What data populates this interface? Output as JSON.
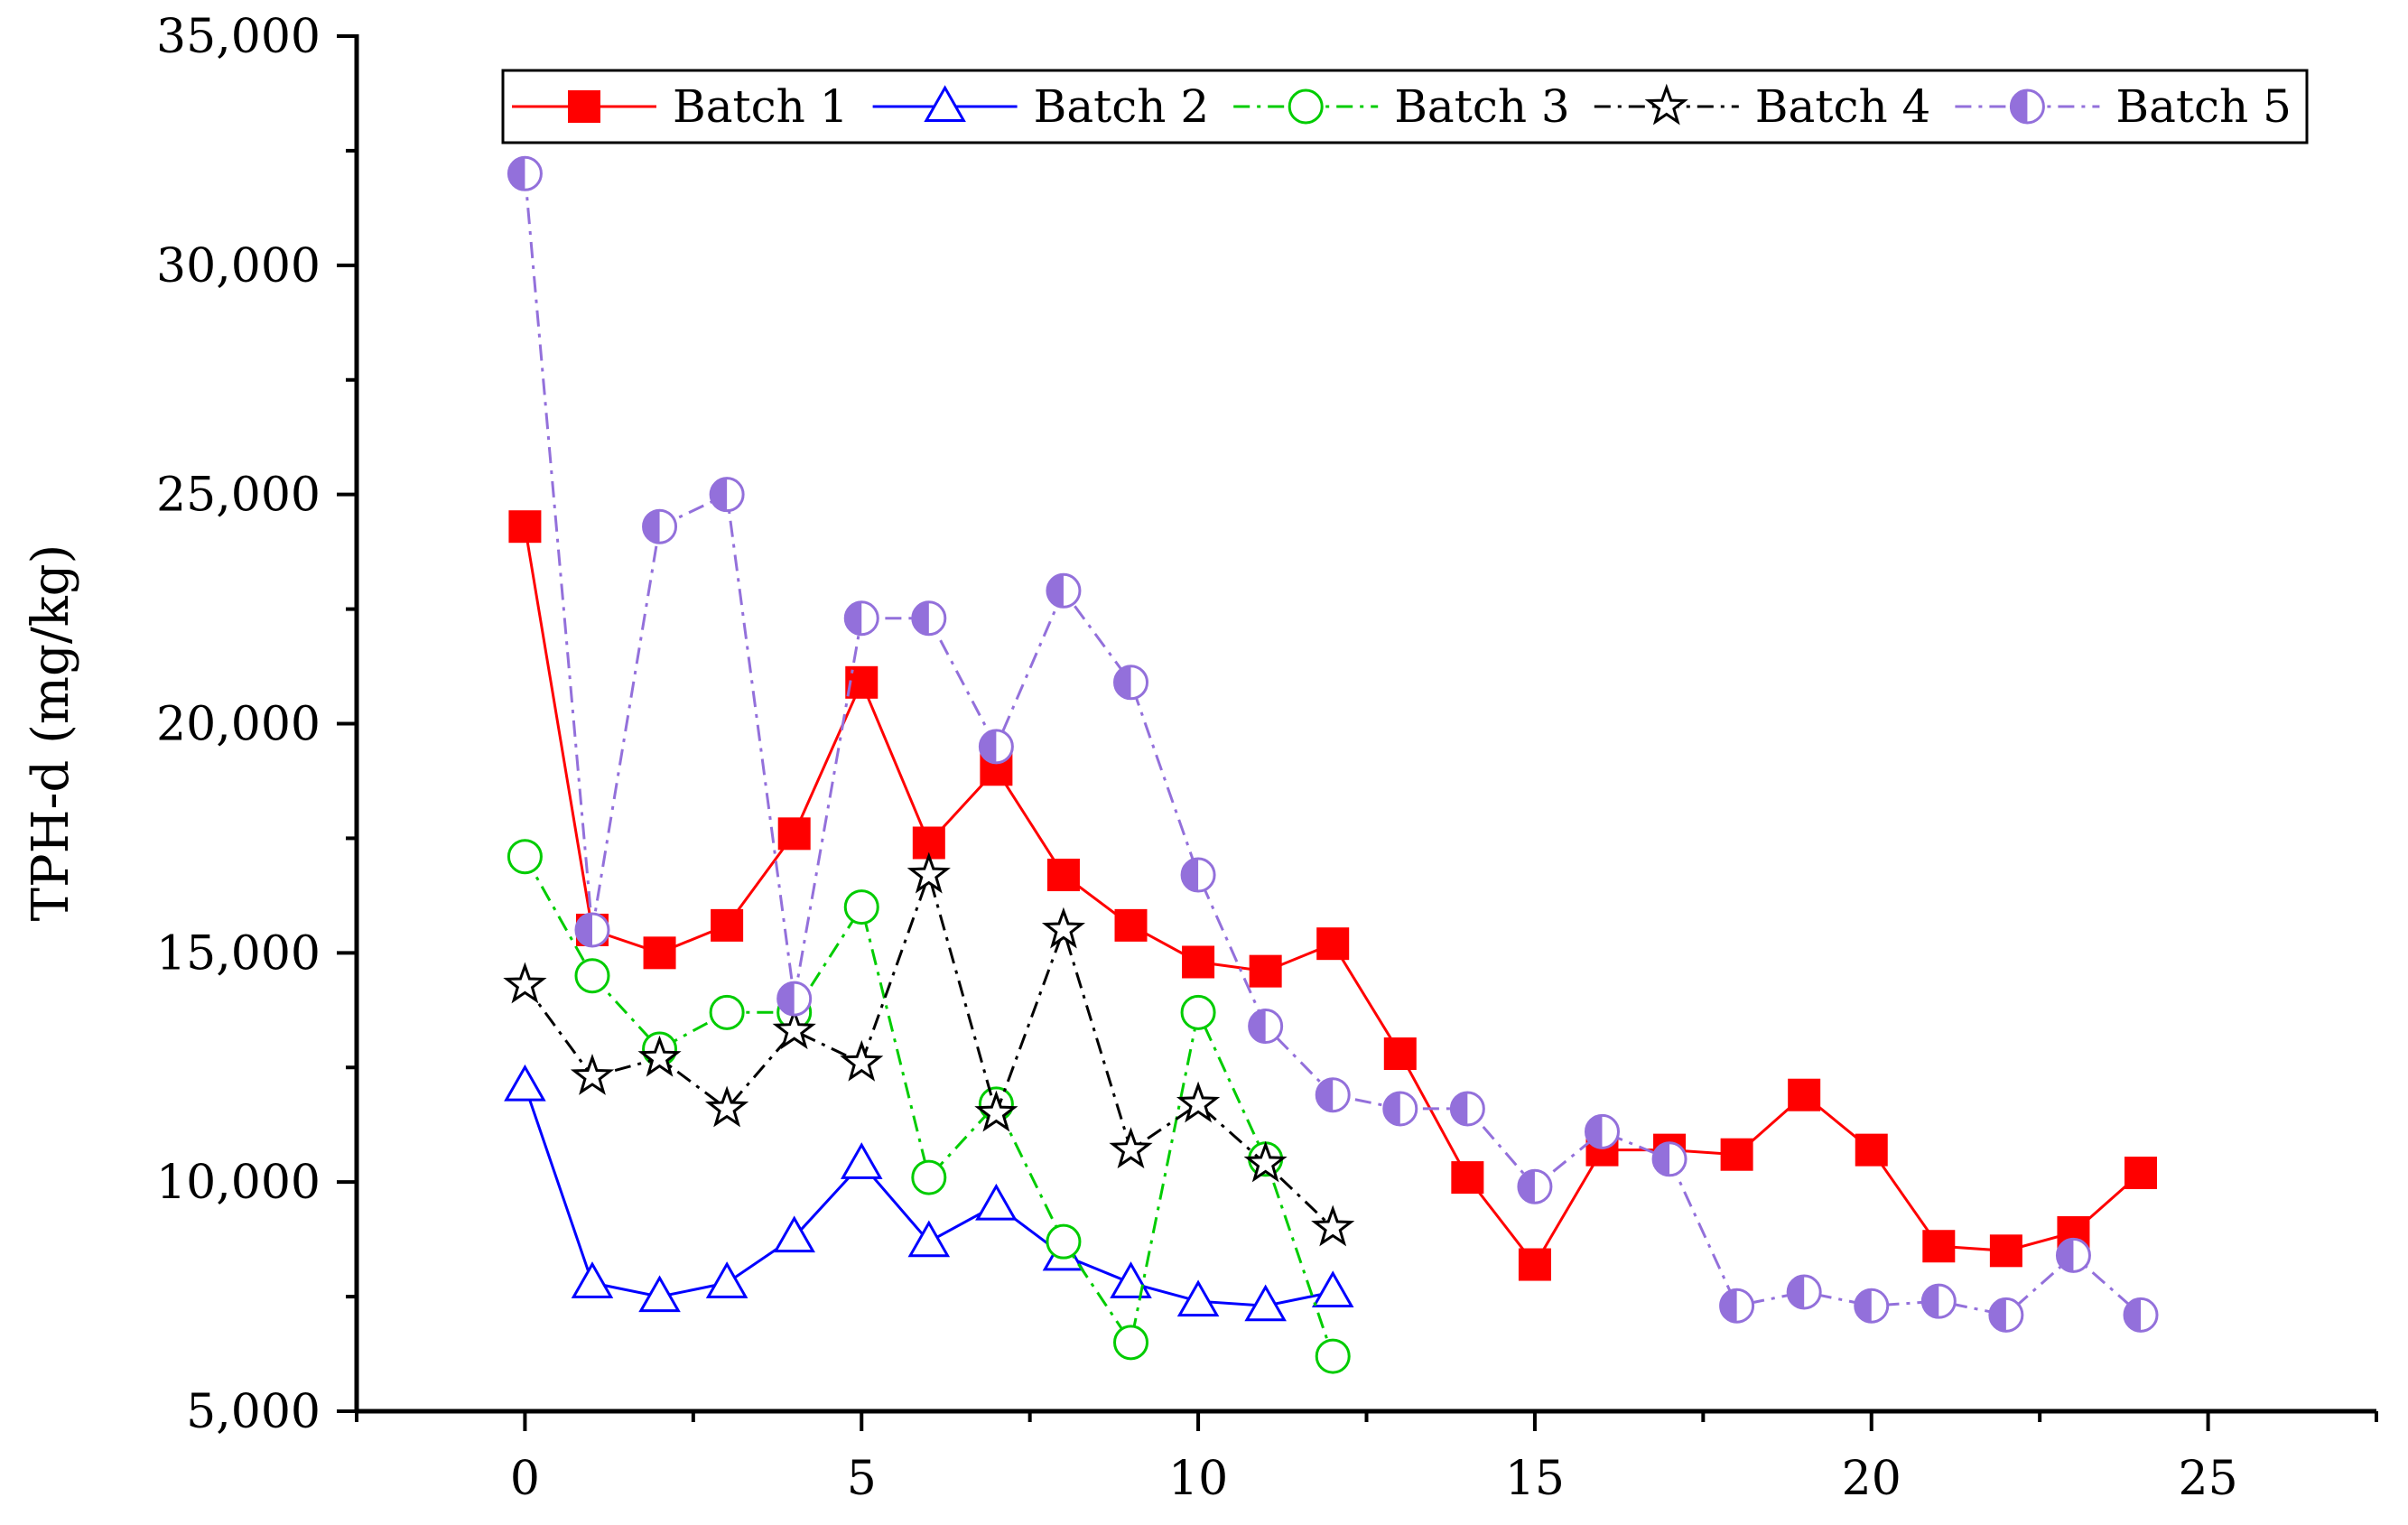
{
  "chart_data": {
    "type": "line",
    "title": "",
    "xlabel": "",
    "ylabel": "TPH-d (mg/kg)",
    "xlim": [
      -2.5,
      27.5
    ],
    "ylim": [
      5000,
      35000
    ],
    "x_ticks": [
      0,
      5,
      10,
      15,
      20,
      25
    ],
    "y_ticks": [
      5000,
      10000,
      15000,
      20000,
      25000,
      30000,
      35000
    ],
    "x_tick_labels": [
      "0",
      "5",
      "10",
      "15",
      "20",
      "25"
    ],
    "y_tick_labels": [
      "5,000",
      "10,000",
      "15,000",
      "20,000",
      "25,000",
      "30,000",
      "35,000"
    ],
    "grid": false,
    "legend_position": "top",
    "series": [
      {
        "name": "Batch 1",
        "color": "#ff0000",
        "marker": "filled-square",
        "line_style": "solid",
        "x": [
          0,
          1,
          2,
          3,
          4,
          5,
          6,
          7,
          8,
          9,
          10,
          11,
          12,
          13,
          14,
          15,
          16,
          17,
          18,
          19,
          20,
          21,
          22,
          23,
          24
        ],
        "values": [
          24300,
          15500,
          15000,
          15600,
          17600,
          20900,
          17400,
          19000,
          16700,
          15600,
          14800,
          14600,
          15200,
          12800,
          10100,
          8200,
          10700,
          10700,
          10600,
          11900,
          10700,
          8600,
          8500,
          8900,
          10200
        ]
      },
      {
        "name": "Batch 2",
        "color": "#0000ff",
        "marker": "open-triangle",
        "line_style": "solid",
        "x": [
          0,
          1,
          2,
          3,
          4,
          5,
          6,
          7,
          8,
          9,
          10,
          11,
          12
        ],
        "values": [
          12100,
          7800,
          7500,
          7800,
          8800,
          10400,
          8700,
          9500,
          8400,
          7800,
          7400,
          7300,
          7600
        ]
      },
      {
        "name": "Batch 3",
        "color": "#00cc00",
        "marker": "open-circle",
        "line_style": "dash-dot",
        "x": [
          0,
          1,
          2,
          3,
          4,
          5,
          6,
          7,
          8,
          9,
          10,
          11,
          12
        ],
        "values": [
          17100,
          14500,
          12900,
          13700,
          13700,
          16000,
          10100,
          11700,
          8700,
          6500,
          13700,
          10500,
          6200
        ]
      },
      {
        "name": "Batch 4",
        "color": "#000000",
        "marker": "open-star",
        "line_style": "dash-dot",
        "x": [
          0,
          1,
          2,
          3,
          4,
          5,
          6,
          7,
          8,
          9,
          10,
          11,
          12
        ],
        "values": [
          14300,
          12300,
          12700,
          11600,
          13300,
          12600,
          16700,
          11500,
          15500,
          10700,
          11700,
          10400,
          9000
        ]
      },
      {
        "name": "Batch 5",
        "color": "#9370db",
        "marker": "half-filled-circle",
        "line_style": "dash-dot",
        "x": [
          0,
          1,
          2,
          3,
          4,
          5,
          6,
          7,
          8,
          9,
          10,
          11,
          12,
          13,
          14,
          15,
          16,
          17,
          18,
          19,
          20,
          21,
          22,
          23,
          24
        ],
        "values": [
          32000,
          15500,
          24300,
          25000,
          14000,
          22300,
          22300,
          19500,
          22900,
          20900,
          16700,
          13400,
          11900,
          11600,
          11600,
          9900,
          11100,
          10500,
          7300,
          7600,
          7300,
          7400,
          7100,
          8400,
          7100
        ]
      }
    ]
  }
}
